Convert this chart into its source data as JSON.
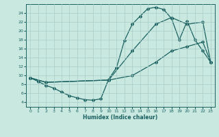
{
  "xlabel": "Humidex (Indice chaleur)",
  "bg_color": "#c8e8e0",
  "grid_color": "#a8ccc8",
  "line_color": "#1a6060",
  "xlim": [
    -0.5,
    23.5
  ],
  "ylim": [
    3,
    26
  ],
  "xticks": [
    0,
    1,
    2,
    3,
    4,
    5,
    6,
    7,
    8,
    9,
    10,
    11,
    12,
    13,
    14,
    15,
    16,
    17,
    18,
    19,
    20,
    21,
    22,
    23
  ],
  "yticks": [
    4,
    6,
    8,
    10,
    12,
    14,
    16,
    18,
    20,
    22,
    24
  ],
  "line1_x": [
    0,
    1,
    2,
    3,
    4,
    5,
    6,
    7,
    8,
    9,
    10,
    11,
    12,
    13,
    14,
    15,
    16,
    17,
    18,
    19,
    20,
    21,
    22,
    23
  ],
  "line1_y": [
    9.5,
    8.7,
    7.8,
    7.2,
    6.3,
    5.5,
    5.0,
    4.6,
    4.5,
    4.8,
    9.2,
    11.8,
    17.8,
    21.5,
    23.3,
    25.0,
    25.3,
    24.8,
    22.8,
    18.0,
    22.2,
    18.0,
    15.5,
    13.0
  ],
  "line2_x": [
    0,
    2,
    10,
    13,
    16,
    18,
    20,
    22,
    23
  ],
  "line2_y": [
    9.5,
    8.5,
    9.0,
    15.5,
    21.5,
    23.0,
    21.5,
    22.0,
    13.0
  ],
  "line3_x": [
    0,
    2,
    10,
    13,
    16,
    18,
    20,
    22,
    23
  ],
  "line3_y": [
    9.5,
    8.5,
    9.0,
    10.0,
    13.0,
    15.5,
    16.5,
    17.5,
    13.0
  ]
}
